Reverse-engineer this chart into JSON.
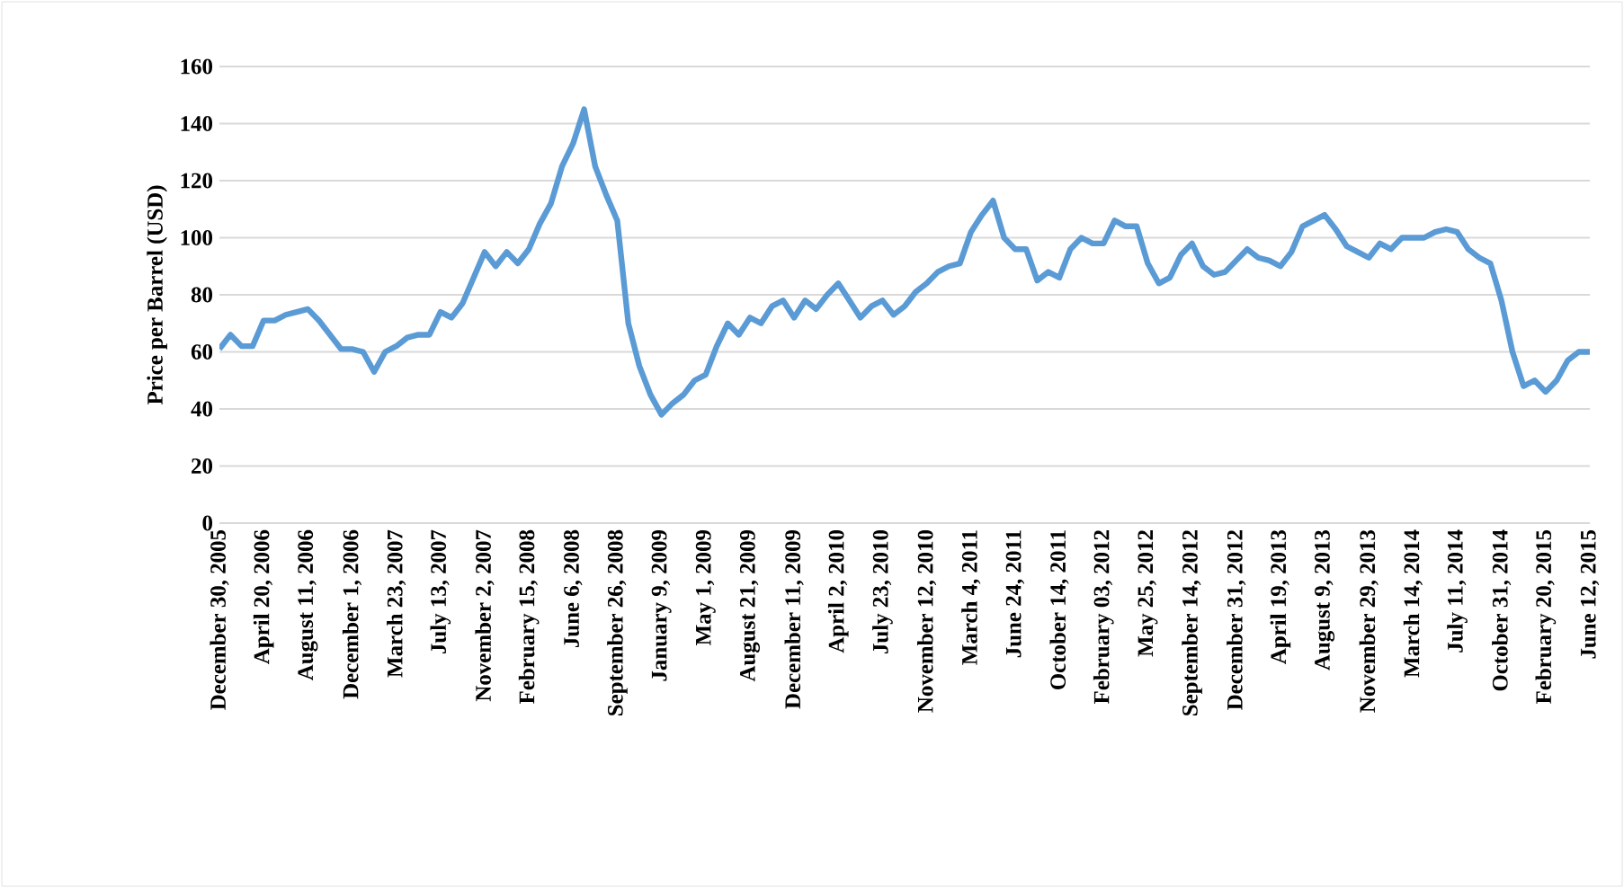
{
  "chart_data": {
    "type": "line",
    "ylabel": "Price per Barrel (USD)",
    "categories": [
      "December 30, 2005",
      null,
      null,
      null,
      "April 20, 2006",
      null,
      null,
      null,
      "August 11, 2006",
      null,
      null,
      null,
      "December 1, 2006",
      null,
      null,
      null,
      "March 23, 2007",
      null,
      null,
      null,
      "July 13, 2007",
      null,
      null,
      null,
      "November 2, 2007",
      null,
      null,
      null,
      "February 15, 2008",
      null,
      null,
      null,
      "June 6, 2008",
      null,
      null,
      null,
      "September 26, 2008",
      null,
      null,
      null,
      "January 9, 2009",
      null,
      null,
      null,
      "May 1, 2009",
      null,
      null,
      null,
      "August 21, 2009",
      null,
      null,
      null,
      "December 11, 2009",
      null,
      null,
      null,
      "April 2, 2010",
      null,
      null,
      null,
      "July 23, 2010",
      null,
      null,
      null,
      "November 12, 2010",
      null,
      null,
      null,
      "March 4, 2011",
      null,
      null,
      null,
      "June 24, 2011",
      null,
      null,
      null,
      "October 14, 2011",
      null,
      null,
      null,
      "February 03, 2012",
      null,
      null,
      null,
      "May 25, 2012",
      null,
      null,
      null,
      "September 14, 2012",
      null,
      null,
      null,
      "December 31, 2012",
      null,
      null,
      null,
      "April 19, 2013",
      null,
      null,
      null,
      "August 9, 2013",
      null,
      null,
      null,
      "November 29, 2013",
      null,
      null,
      null,
      "March 14, 2014",
      null,
      null,
      null,
      "July 11, 2014",
      null,
      null,
      null,
      "October 31, 2014",
      null,
      null,
      null,
      "February 20, 2015",
      null,
      null,
      null,
      "June 12, 2015"
    ],
    "values": [
      61,
      66,
      62,
      62,
      71,
      71,
      73,
      74,
      75,
      71,
      66,
      61,
      61,
      60,
      53,
      60,
      62,
      65,
      66,
      66,
      74,
      72,
      77,
      86,
      95,
      90,
      95,
      91,
      96,
      105,
      112,
      125,
      133,
      145,
      125,
      115,
      106,
      70,
      55,
      45,
      38,
      42,
      45,
      50,
      52,
      62,
      70,
      66,
      72,
      70,
      76,
      78,
      72,
      78,
      75,
      80,
      84,
      78,
      72,
      76,
      78,
      73,
      76,
      81,
      84,
      88,
      90,
      91,
      102,
      108,
      113,
      100,
      96,
      96,
      85,
      88,
      86,
      96,
      100,
      98,
      98,
      106,
      104,
      104,
      91,
      84,
      86,
      94,
      98,
      90,
      87,
      88,
      92,
      96,
      93,
      92,
      90,
      95,
      104,
      106,
      108,
      103,
      97,
      95,
      93,
      98,
      96,
      100,
      100,
      100,
      102,
      103,
      102,
      96,
      93,
      91,
      78,
      60,
      48,
      50,
      46,
      50,
      57,
      60,
      60
    ],
    "color": "#5b9bd5",
    "ylim": [
      0,
      160
    ],
    "yticks": [
      0,
      20,
      40,
      60,
      80,
      100,
      120,
      140,
      160
    ],
    "grid": "y"
  }
}
